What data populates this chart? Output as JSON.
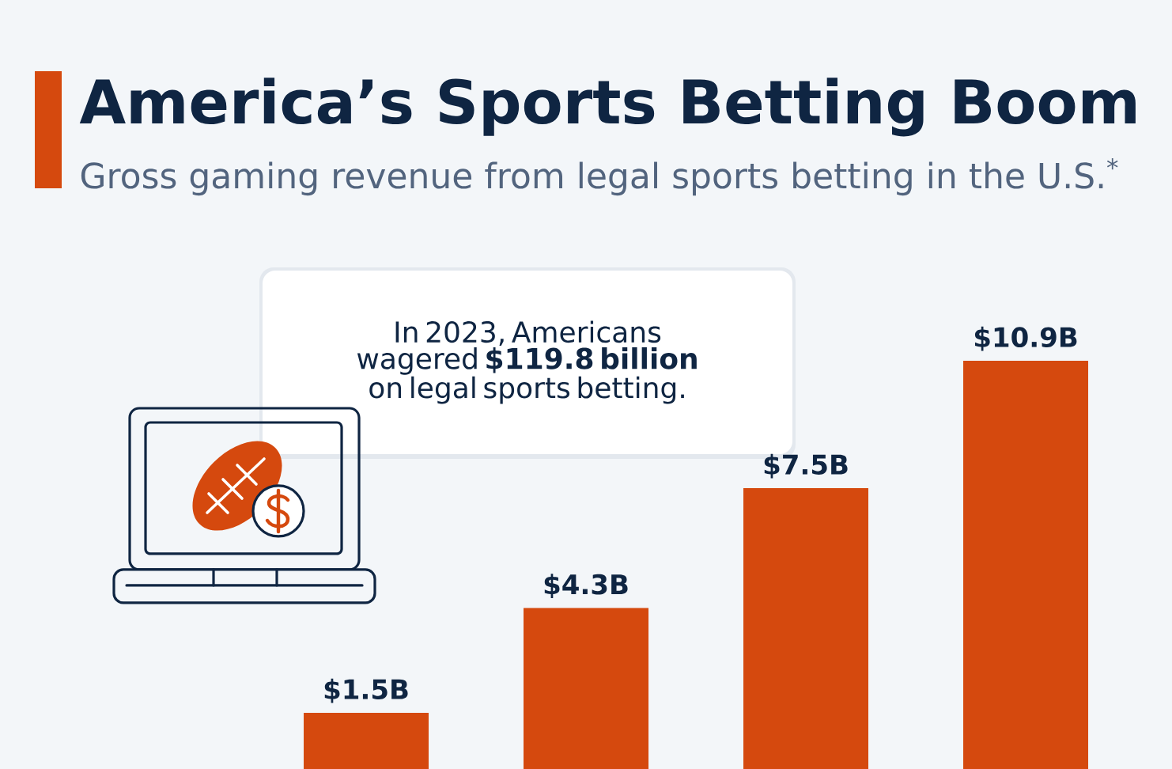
{
  "chart_data": {
    "type": "bar",
    "title": "America’s Sports Betting Boom",
    "subtitle": "Gross gaming revenue from legal sports betting in the U.S.$^{*}$",
    "categories": [
      null,
      null,
      null,
      null
    ],
    "values": [
      1.5,
      4.3,
      7.5,
      10.9
    ],
    "value_labels": [
      "$1.5B",
      "$4.3B",
      "$7.5B",
      "$10.9B"
    ],
    "color": "#d5490e",
    "annotations": [
      "In 2023, Americans wagered **$119.8 billion** on legal sports betting."
    ]
  }
}
